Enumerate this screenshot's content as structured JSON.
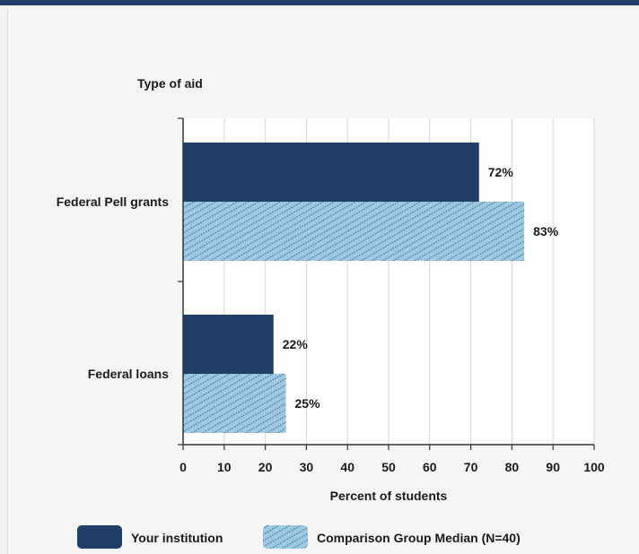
{
  "chart_data": {
    "type": "bar",
    "orientation": "horizontal",
    "ylabel": "Type of aid",
    "xlabel": "Percent of students",
    "categories": [
      "Federal Pell grants",
      "Federal loans"
    ],
    "series": [
      {
        "name": "Your institution",
        "values": [
          72,
          22
        ],
        "labels": [
          "72%",
          "22%"
        ],
        "color": "#1f3f66"
      },
      {
        "name": "Comparison Group Median (N=40)",
        "values": [
          83,
          25
        ],
        "labels": [
          "83%",
          "25%"
        ],
        "color": "#9ec8e3",
        "hatch_color": "#4a7a8c"
      }
    ],
    "xlim": [
      0,
      100
    ],
    "xticks": [
      "0",
      "10",
      "20",
      "30",
      "40",
      "50",
      "60",
      "70",
      "80",
      "90",
      "100"
    ],
    "grid": true,
    "legend_position": "bottom"
  }
}
